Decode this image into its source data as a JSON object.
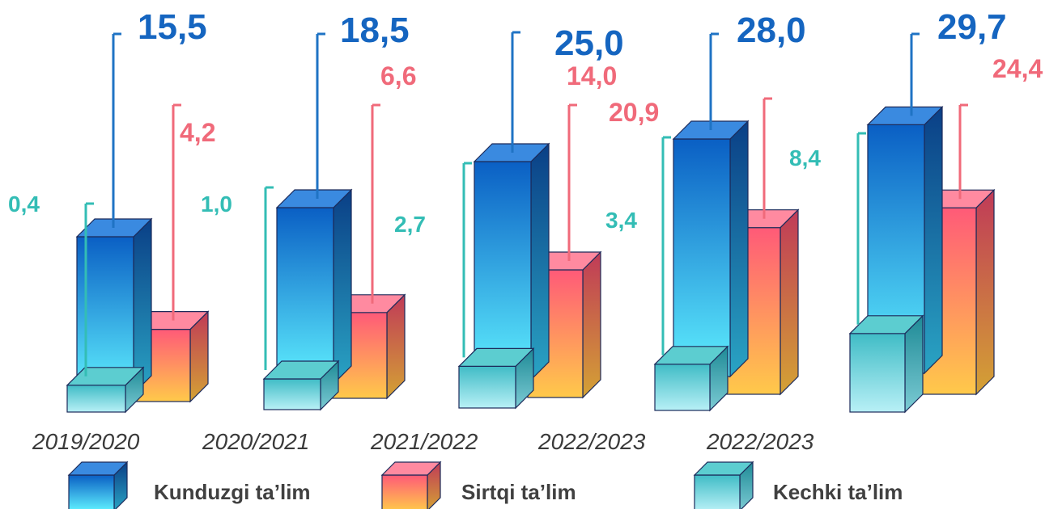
{
  "chart_data": {
    "type": "bar",
    "categories": [
      "2019/2020",
      "2020/2021",
      "2021/2022",
      "2022/2023",
      "2022/2023"
    ],
    "series": [
      {
        "name": "Kunduzgi ta’lim",
        "values": [
          15.5,
          18.5,
          25.0,
          28.0,
          29.7
        ],
        "labels": [
          "15,5",
          "18,5",
          "25,0",
          "28,0",
          "29,7"
        ],
        "color": "#1f73c4"
      },
      {
        "name": "Sirtqi ta’lim",
        "values": [
          4.2,
          6.6,
          14.0,
          20.9,
          24.4
        ],
        "labels": [
          "4,2",
          "6,6",
          "14,0",
          "20,9",
          "24,4"
        ],
        "color": "#f06a7a"
      },
      {
        "name": "Kechki ta’lim",
        "values": [
          0.4,
          1.0,
          2.7,
          3.4,
          8.4
        ],
        "labels": [
          "0,4",
          "1,0",
          "2,7",
          "3,4",
          "8,4"
        ],
        "color": "#3cc4c0"
      }
    ],
    "legend_position": "bottom",
    "grid": false
  },
  "colors": {
    "kunduzgi_label": "#1565c0",
    "sirtqi_label": "#f06a7a",
    "kechki_label": "#33bdb5"
  }
}
